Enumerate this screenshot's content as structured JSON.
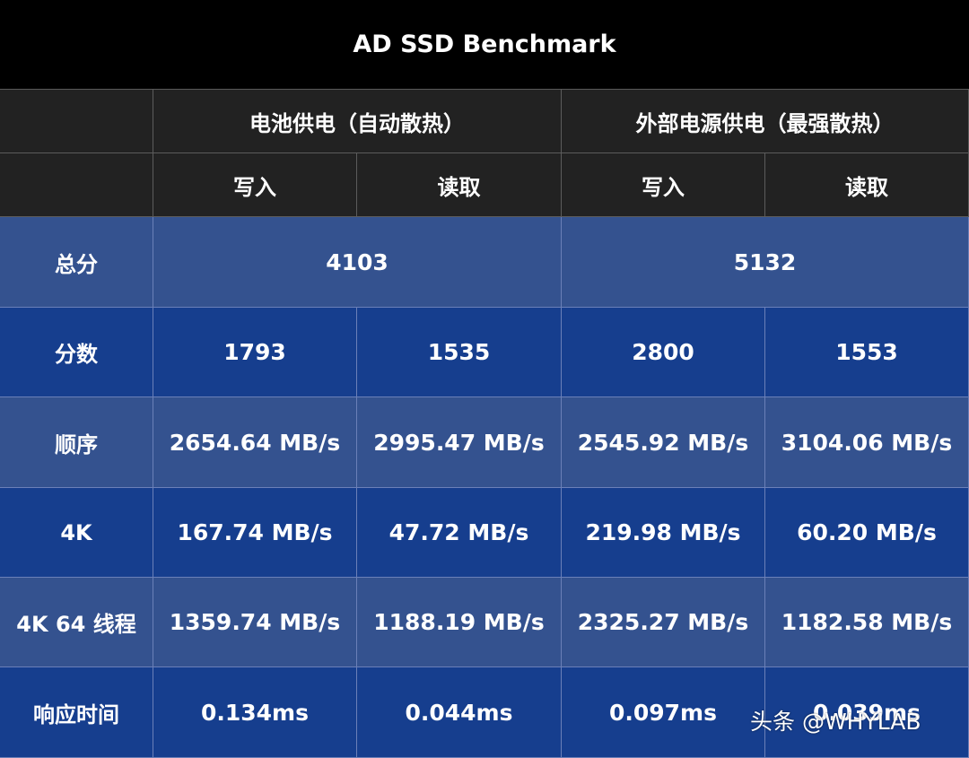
{
  "chart_data": {
    "type": "table",
    "title": "AD SSD Benchmark",
    "column_groups": [
      "电池供电（自动散热）",
      "外部电源供电（最强散热）"
    ],
    "sub_columns": [
      "写入",
      "读取",
      "写入",
      "读取"
    ],
    "total": {
      "label": "总分",
      "values": [
        "4103",
        "5132"
      ]
    },
    "rows": [
      {
        "label": "分数",
        "values": [
          "1793",
          "1535",
          "2800",
          "1553"
        ]
      },
      {
        "label": "顺序",
        "values": [
          "2654.64 MB/s",
          "2995.47 MB/s",
          "2545.92 MB/s",
          "3104.06 MB/s"
        ]
      },
      {
        "label": "4K",
        "values": [
          "167.74 MB/s",
          "47.72 MB/s",
          "219.98 MB/s",
          "60.20 MB/s"
        ]
      },
      {
        "label": "4K 64 线程",
        "values": [
          "1359.74 MB/s",
          "1188.19 MB/s",
          "2325.27 MB/s",
          "1182.58 MB/s"
        ]
      },
      {
        "label": "响应时间",
        "values": [
          "0.134ms",
          "0.044ms",
          "0.097ms",
          "0.039ms"
        ]
      }
    ],
    "colors": {
      "header_bg": "#222222",
      "title_bg": "#000000",
      "row_light": "#34528f",
      "row_dark": "#163e8e",
      "text": "#ffffff"
    }
  },
  "watermark": "头条 @WHYLAB"
}
